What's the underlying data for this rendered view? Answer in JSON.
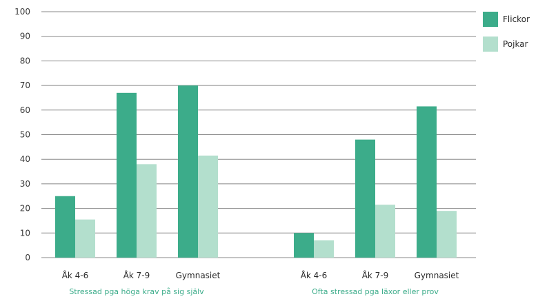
{
  "chart_data": {
    "type": "bar",
    "ylim": [
      0,
      100
    ],
    "yticks": [
      0,
      10,
      20,
      30,
      40,
      50,
      60,
      70,
      80,
      90,
      100
    ],
    "grid": true,
    "legend_position": "top-right",
    "colors": {
      "Flickor": "#3cac8a",
      "Pojkar": "#b3dfcd",
      "group_label": "#3cac8a",
      "grid": "#888888"
    },
    "series_names": [
      "Flickor",
      "Pojkar"
    ],
    "groups": [
      {
        "label": "Stressad pga höga krav på sig själv",
        "categories": [
          "Åk 4-6",
          "Åk 7-9",
          "Gymnasiet"
        ],
        "series": [
          {
            "name": "Flickor",
            "values": [
              25,
              67,
              70
            ]
          },
          {
            "name": "Pojkar",
            "values": [
              15.5,
              38,
              41.5
            ]
          }
        ]
      },
      {
        "label": "Ofta stressad pga läxor eller prov",
        "categories": [
          "Åk 4-6",
          "Åk 7-9",
          "Gymnasiet"
        ],
        "series": [
          {
            "name": "Flickor",
            "values": [
              10,
              48,
              61.5
            ]
          },
          {
            "name": "Pojkar",
            "values": [
              7,
              21.5,
              19
            ]
          }
        ]
      }
    ]
  }
}
